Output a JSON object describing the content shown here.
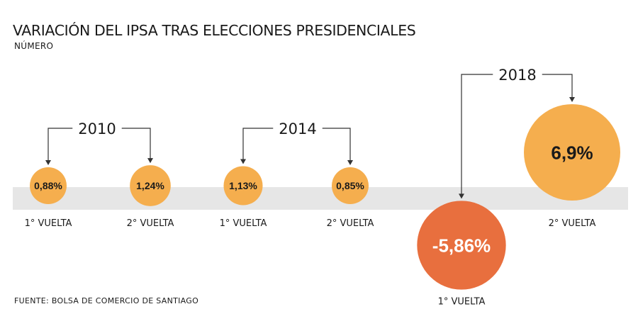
{
  "title": "VARIACIÓN DEL IPSA TRAS ELECCIONES PRESIDENCIALES",
  "subtitle": "NÚMERO",
  "source": "FUENTE: BOLSA DE COMERCIO DE SANTIAGO",
  "colors": {
    "positive": "#F5AE4E",
    "negative": "#E86F3E",
    "band": "#E6E6E6",
    "connector": "#333333"
  },
  "chart_data": {
    "type": "bubble",
    "title": "VARIACIÓN DEL IPSA TRAS ELECCIONES PRESIDENCIALES",
    "groups": [
      {
        "year": "2010",
        "points": [
          {
            "round": "1° VUELTA",
            "value": 0.88,
            "label": "0,88%"
          },
          {
            "round": "2° VUELTA",
            "value": 1.24,
            "label": "1,24%"
          }
        ]
      },
      {
        "year": "2014",
        "points": [
          {
            "round": "1° VUELTA",
            "value": 1.13,
            "label": "1,13%"
          },
          {
            "round": "2° VUELTA",
            "value": 0.85,
            "label": "0,85%"
          }
        ]
      },
      {
        "year": "2018",
        "points": [
          {
            "round": "1° VUELTA",
            "value": -5.86,
            "label": "-5,86%"
          },
          {
            "round": "2° VUELTA",
            "value": 6.9,
            "label": "6,9%"
          }
        ]
      }
    ]
  }
}
